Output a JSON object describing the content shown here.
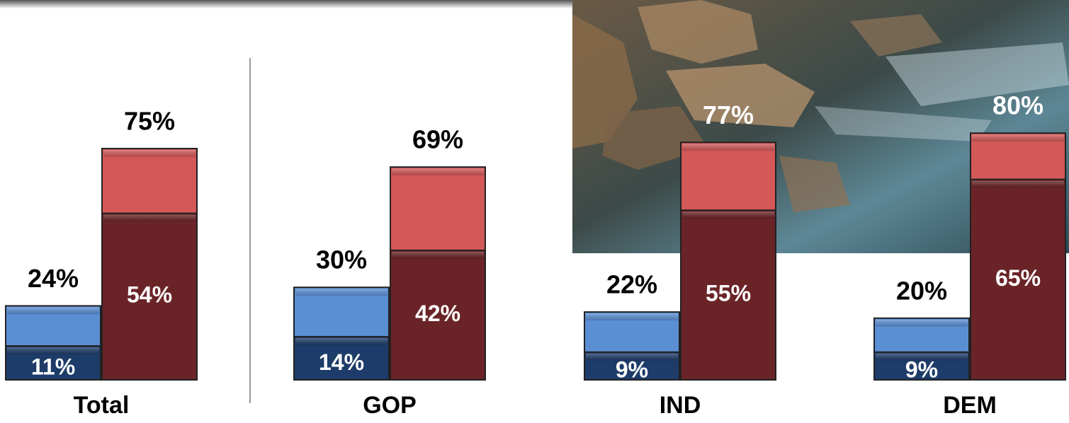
{
  "chart_data": {
    "type": "bar",
    "overlap": true,
    "categories": [
      "Total",
      "GOP",
      "IND",
      "DEM"
    ],
    "ylim": [
      0,
      100
    ],
    "series": [
      {
        "color": "#5b8fd4",
        "values": [
          24,
          30,
          22,
          20
        ],
        "value_labels": [
          "24%",
          "30%",
          "22%",
          "20%"
        ]
      },
      {
        "color": "#1e3c69",
        "values": [
          11,
          14,
          9,
          9
        ],
        "value_labels": [
          "11%",
          "14%",
          "9%",
          "9%"
        ]
      },
      {
        "color": "#d35858",
        "values": [
          75,
          69,
          77,
          80
        ],
        "value_labels": [
          "75%",
          "69%",
          "77%",
          "80%"
        ]
      },
      {
        "color": "#6a2428",
        "values": [
          54,
          42,
          55,
          65
        ],
        "value_labels": [
          "54%",
          "42%",
          "55%",
          "65%"
        ]
      }
    ]
  }
}
